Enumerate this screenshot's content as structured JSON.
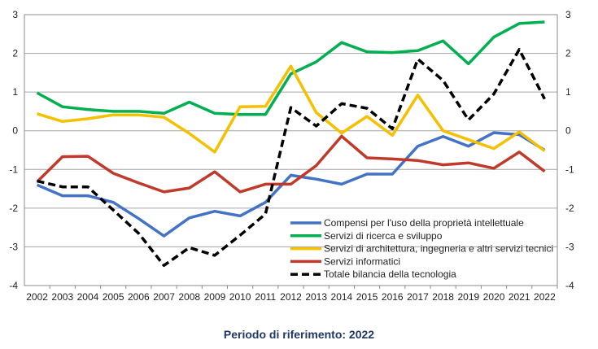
{
  "chart_data": {
    "type": "line",
    "x": [
      2002,
      2003,
      2004,
      2005,
      2006,
      2007,
      2008,
      2009,
      2010,
      2011,
      2012,
      2013,
      2014,
      2015,
      2016,
      2017,
      2018,
      2019,
      2020,
      2021,
      2022
    ],
    "ylim": [
      -4,
      3
    ],
    "yticks": [
      3,
      2,
      1,
      0,
      -1,
      -2,
      -3,
      -4
    ],
    "grid": true,
    "legend_position": "bottom-right",
    "series": [
      {
        "name": "Compensi per l'uso della proprietà intellettuale",
        "color": "#4472c4",
        "dashed": false,
        "values": [
          -1.4,
          -1.68,
          -1.68,
          -1.85,
          -2.27,
          -2.72,
          -2.25,
          -2.08,
          -2.2,
          -1.85,
          -1.15,
          -1.25,
          -1.38,
          -1.12,
          -1.12,
          -0.4,
          -0.15,
          -0.4,
          -0.05,
          -0.1,
          -0.5
        ]
      },
      {
        "name": "Servizi di ricerca e sviluppo",
        "color": "#00b050",
        "dashed": false,
        "values": [
          0.98,
          0.62,
          0.55,
          0.5,
          0.5,
          0.45,
          0.74,
          0.45,
          0.42,
          0.42,
          1.47,
          1.78,
          2.28,
          2.04,
          2.02,
          2.07,
          2.32,
          1.73,
          2.42,
          2.77,
          2.81
        ]
      },
      {
        "name": "Servizi di architettura, ingegneria e altri servizi tecnici",
        "color": "#f5c000",
        "dashed": false,
        "values": [
          0.44,
          0.24,
          0.31,
          0.41,
          0.41,
          0.35,
          -0.07,
          -0.55,
          0.62,
          0.63,
          1.67,
          0.47,
          -0.06,
          0.37,
          -0.12,
          0.92,
          0.0,
          -0.23,
          -0.46,
          -0.03,
          -0.52
        ]
      },
      {
        "name": "Servizi informatici",
        "color": "#c0392b",
        "dashed": false,
        "values": [
          -1.32,
          -0.67,
          -0.66,
          -1.1,
          -1.35,
          -1.58,
          -1.48,
          -1.06,
          -1.58,
          -1.38,
          -1.38,
          -0.9,
          -0.14,
          -0.7,
          -0.73,
          -0.77,
          -0.88,
          -0.83,
          -0.97,
          -0.55,
          -1.05
        ]
      },
      {
        "name": "Totale bilancia della tecnologia",
        "color": "#000000",
        "dashed": true,
        "values": [
          -1.3,
          -1.45,
          -1.45,
          -2.05,
          -2.65,
          -3.48,
          -3.02,
          -3.22,
          -2.7,
          -2.15,
          0.6,
          0.12,
          0.7,
          0.58,
          0.05,
          1.85,
          1.3,
          0.28,
          0.95,
          2.1,
          0.82
        ]
      }
    ]
  },
  "footer": "Periodo di riferimento: 2022"
}
